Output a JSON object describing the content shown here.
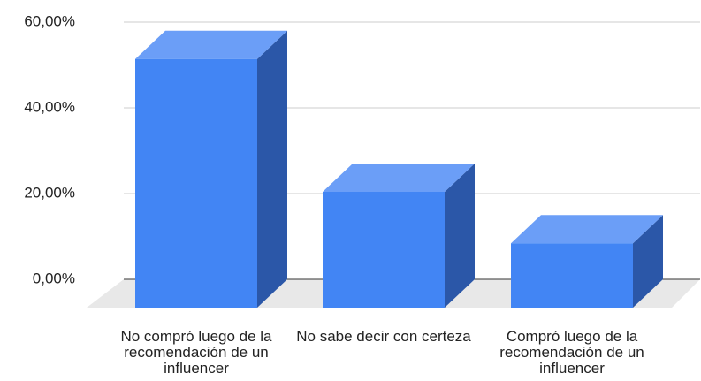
{
  "chart_data": {
    "type": "bar3d",
    "categories": [
      "No compró luego de la recomendación de un influencer",
      "No sabe decir con certeza",
      "Compró luego de la recomendación de un influencer"
    ],
    "values": [
      58,
      27,
      15
    ],
    "color": "#4285f4",
    "ylim": [
      0,
      60
    ],
    "yticks": [
      {
        "value": 0,
        "label": "0,00%"
      },
      {
        "value": 20,
        "label": "20,00%"
      },
      {
        "value": 40,
        "label": "40,00%"
      },
      {
        "value": 60,
        "label": "60,00%"
      }
    ],
    "grid": true
  }
}
